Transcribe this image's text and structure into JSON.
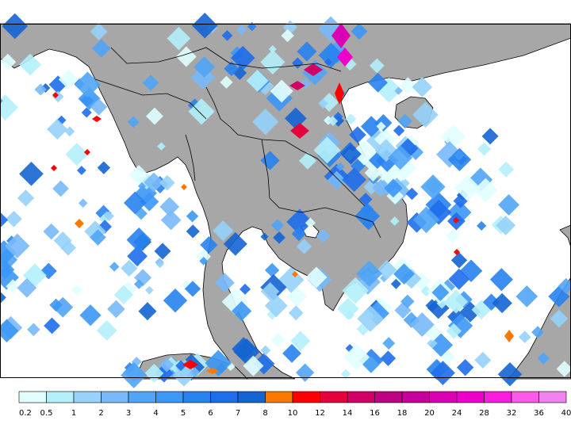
{
  "map": {
    "land_color": "#a7a7a7",
    "sea_color": "#ffffff",
    "coast_color": "#000000"
  },
  "legend": {
    "ticks": [
      "0.2",
      "0.5",
      "1",
      "2",
      "3",
      "4",
      "5",
      "6",
      "7",
      "8",
      "10",
      "12",
      "14",
      "16",
      "18",
      "20",
      "24",
      "28",
      "32",
      "36",
      "40"
    ],
    "colors": [
      "#e1ffff",
      "#b4f0fa",
      "#96d2fa",
      "#78b9fa",
      "#50a5f5",
      "#3c97f5",
      "#2882f0",
      "#1e6eeb",
      "#1464d2",
      "#fa7800",
      "#ff0000",
      "#e6003c",
      "#d20064",
      "#be0082",
      "#c8009b",
      "#dc00b4",
      "#ee00c8",
      "#fa1edc",
      "#fa5ae6",
      "#f082f0"
    ]
  }
}
